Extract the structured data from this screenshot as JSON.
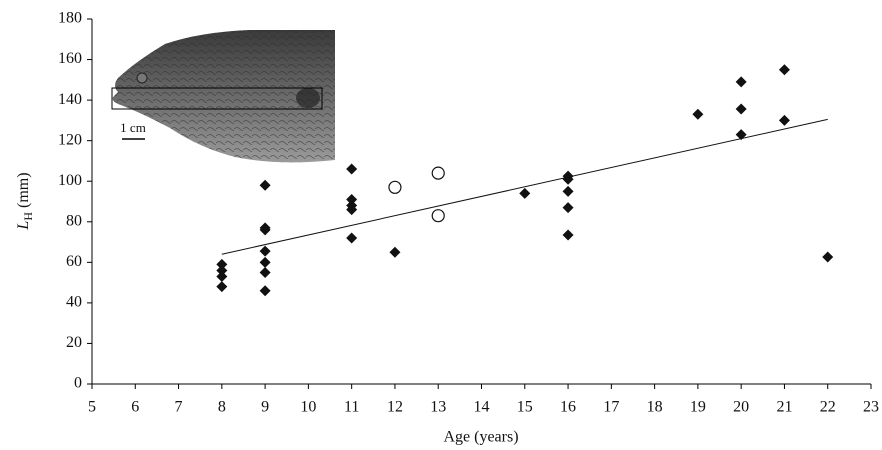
{
  "chart_data": {
    "type": "scatter",
    "x_label": "Age (years)",
    "y_label": {
      "main": "L",
      "sub": "H",
      "unit": "(mm)"
    },
    "xlim": [
      5,
      23
    ],
    "xticks": [
      5,
      6,
      7,
      8,
      9,
      10,
      11,
      12,
      13,
      14,
      15,
      16,
      17,
      18,
      19,
      20,
      21,
      22,
      23
    ],
    "ylim": [
      0,
      180
    ],
    "yticks": [
      0,
      20,
      40,
      60,
      80,
      100,
      120,
      140,
      160,
      180
    ],
    "grid": false,
    "series": [
      {
        "marker": "diamond",
        "color": "#111111",
        "x": [
          8,
          8,
          8,
          8,
          9,
          9,
          9,
          9,
          9,
          9,
          9,
          11,
          11,
          11,
          11,
          11,
          12,
          15,
          16,
          16,
          16,
          16,
          16,
          19,
          20,
          20,
          20,
          21,
          21,
          22
        ],
        "values": [
          59,
          56,
          53,
          48,
          98,
          77,
          76,
          65.5,
          60,
          55,
          46,
          106,
          91,
          88,
          86,
          72,
          65,
          94,
          102.5,
          101,
          95,
          87,
          73.5,
          133,
          149,
          135.6,
          123,
          155,
          130,
          62.6
        ]
      },
      {
        "marker": "open-circle",
        "color": "#111111",
        "x": [
          12,
          13,
          13
        ],
        "values": [
          97,
          104,
          83
        ]
      }
    ],
    "trend_line": {
      "x": [
        8,
        22
      ],
      "values": [
        64,
        130.5
      ],
      "color": "#111111"
    },
    "inset": {
      "scale_label": "1 cm"
    }
  }
}
